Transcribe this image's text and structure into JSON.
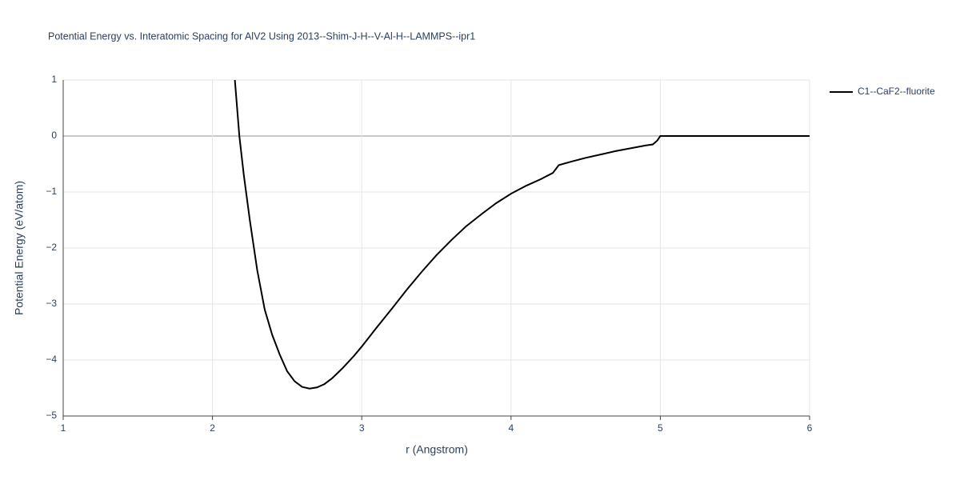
{
  "chart_data": {
    "type": "line",
    "title": "Potential Energy vs. Interatomic Spacing for AlV2 Using 2013--Shim-J-H--V-Al-H--LAMMPS--ipr1",
    "x_label": "r (Angstrom)",
    "y_label": "Potential Energy (eV/atom)",
    "x": [
      2.15,
      2.18,
      2.21,
      2.25,
      2.3,
      2.35,
      2.4,
      2.45,
      2.5,
      2.55,
      2.6,
      2.65,
      2.7,
      2.75,
      2.8,
      2.87,
      2.95,
      3.0,
      3.1,
      3.2,
      3.3,
      3.4,
      3.5,
      3.6,
      3.7,
      3.8,
      3.9,
      4.0,
      4.1,
      4.2,
      4.28,
      4.32,
      4.4,
      4.5,
      4.6,
      4.7,
      4.8,
      4.9,
      4.95,
      4.98,
      5.0,
      6.0
    ],
    "series": [
      {
        "name": "C1--CaF2--fluorite",
        "color": "#000000",
        "values": [
          1.0,
          0.0,
          -0.7,
          -1.5,
          -2.4,
          -3.1,
          -3.55,
          -3.9,
          -4.2,
          -4.38,
          -4.48,
          -4.51,
          -4.49,
          -4.43,
          -4.33,
          -4.15,
          -3.92,
          -3.76,
          -3.42,
          -3.09,
          -2.75,
          -2.43,
          -2.13,
          -1.86,
          -1.61,
          -1.4,
          -1.2,
          -1.03,
          -0.89,
          -0.77,
          -0.66,
          -0.52,
          -0.46,
          -0.39,
          -0.33,
          -0.27,
          -0.22,
          -0.17,
          -0.15,
          -0.08,
          0.0,
          0.0
        ]
      }
    ],
    "xlim": [
      1,
      6
    ],
    "xticks": [
      1,
      2,
      3,
      4,
      5,
      6
    ],
    "ylim": [
      -5,
      1
    ],
    "yticks": [
      {
        "value": -5,
        "label": "−5"
      },
      {
        "value": -4,
        "label": "−4"
      },
      {
        "value": -3,
        "label": "−3"
      },
      {
        "value": -2,
        "label": "−2"
      },
      {
        "value": -1,
        "label": "−1"
      },
      0,
      1
    ],
    "grid": true,
    "legend": "right"
  }
}
